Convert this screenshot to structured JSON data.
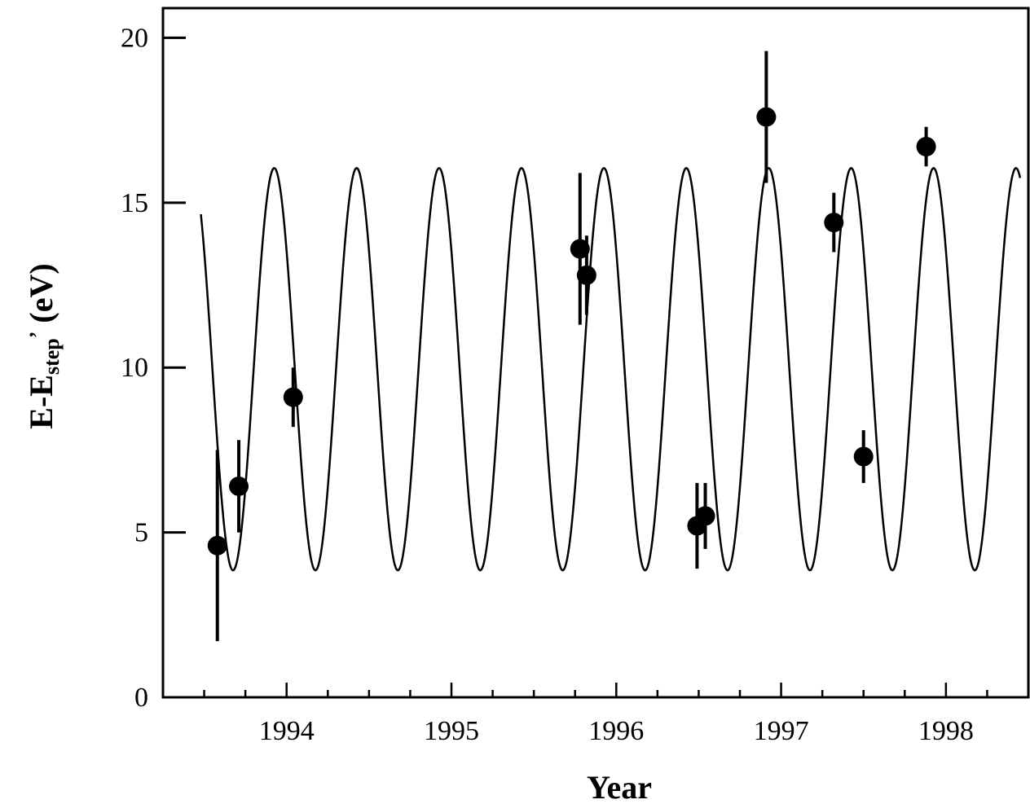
{
  "chart_data": {
    "type": "scatter",
    "title": "",
    "xlabel": "Year",
    "ylabel": {
      "main": "E-E",
      "sub": "step",
      "sup": "’",
      "unit": "(eV)"
    },
    "xlim": [
      1993.25,
      1998.5
    ],
    "ylim": [
      0,
      20.9
    ],
    "x_ticks": [
      1994,
      1995,
      1996,
      1997,
      1998
    ],
    "y_ticks": [
      0,
      5,
      10,
      15,
      20
    ],
    "grid": false,
    "legend": "none",
    "series": [
      {
        "kind": "points_with_errorbars",
        "points": [
          {
            "x": 1993.58,
            "y": 4.6,
            "err": 2.9
          },
          {
            "x": 1993.71,
            "y": 6.4,
            "err": 1.4
          },
          {
            "x": 1994.04,
            "y": 9.1,
            "err": 0.9
          },
          {
            "x": 1995.78,
            "y": 13.6,
            "err": 2.3
          },
          {
            "x": 1995.82,
            "y": 12.8,
            "err": 1.2
          },
          {
            "x": 1996.49,
            "y": 5.2,
            "err": 1.3
          },
          {
            "x": 1996.54,
            "y": 5.5,
            "err": 1.0
          },
          {
            "x": 1996.91,
            "y": 17.6,
            "err": 2.0
          },
          {
            "x": 1997.32,
            "y": 14.4,
            "err": 0.9
          },
          {
            "x": 1997.5,
            "y": 7.3,
            "err": 0.8
          },
          {
            "x": 1997.88,
            "y": 16.7,
            "err": 0.6
          }
        ]
      },
      {
        "kind": "fit_curve",
        "model": "sinusoid",
        "offset": 9.95,
        "amplitude": 6.1,
        "period_years": 0.5,
        "peak_at": 1993.925,
        "x_range": [
          1993.48,
          1998.45
        ]
      }
    ],
    "colors": {
      "marks": "#000000",
      "background": "#ffffff"
    }
  }
}
